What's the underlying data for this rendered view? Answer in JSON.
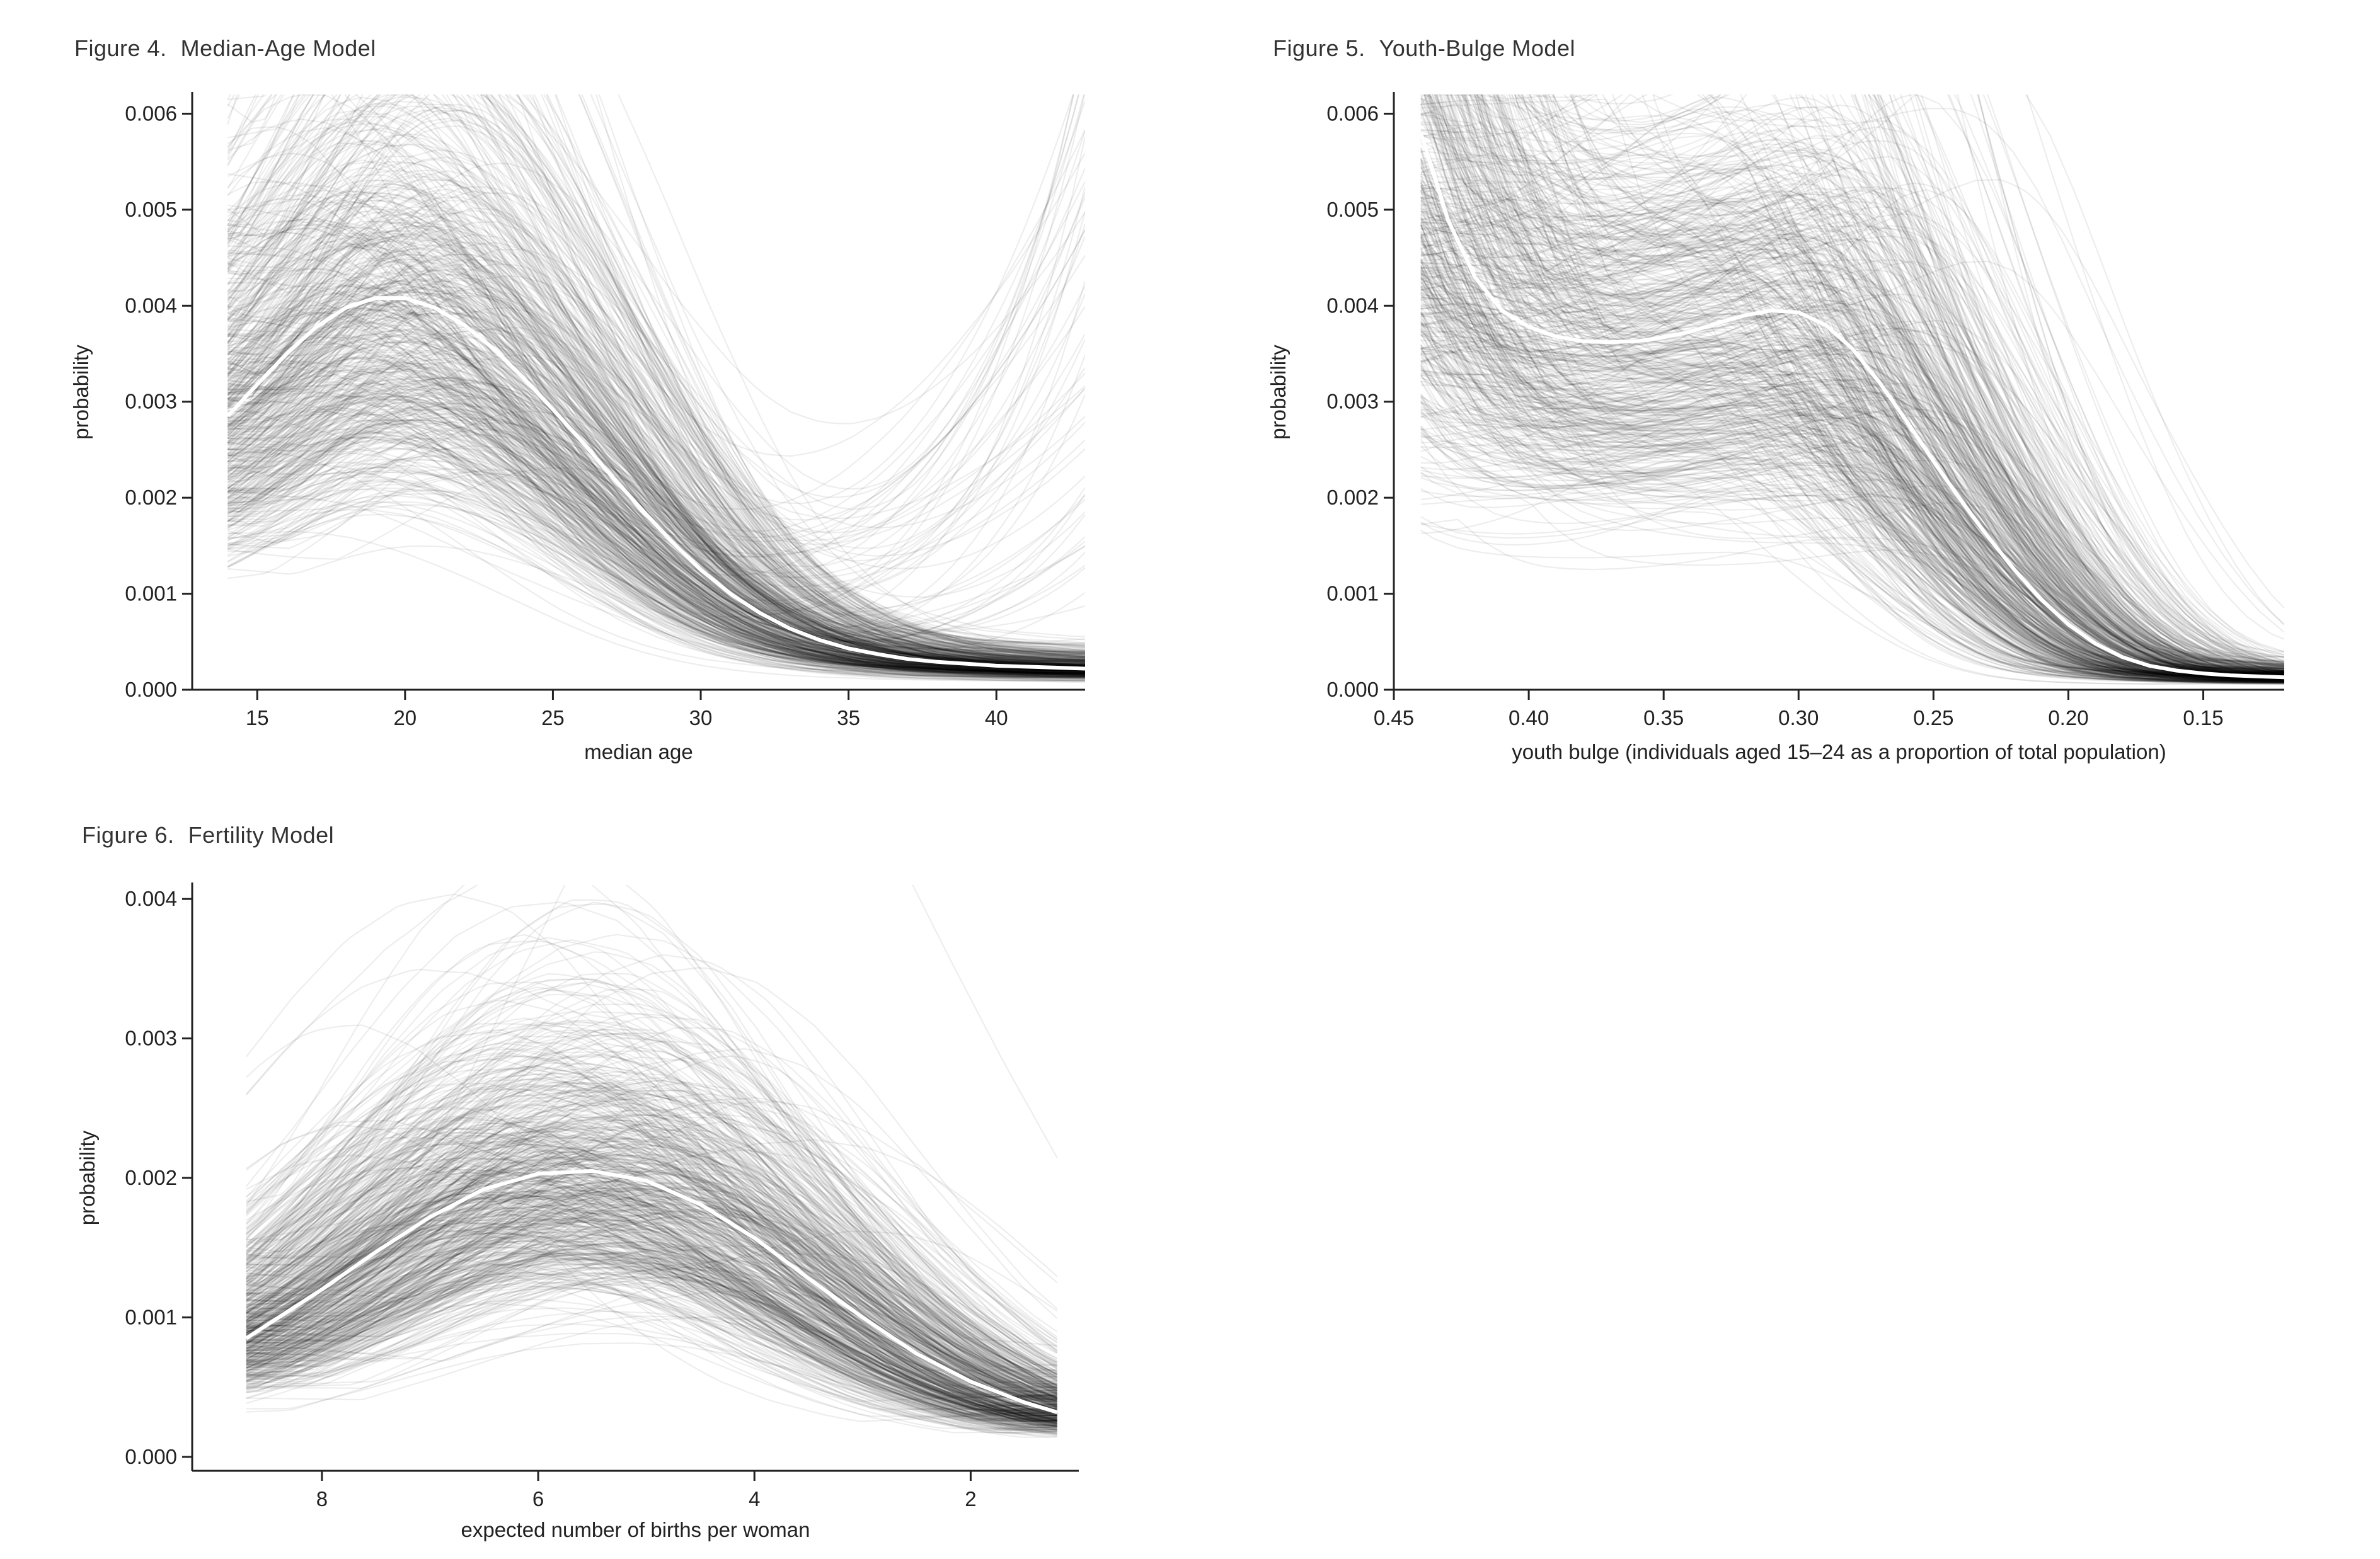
{
  "figures": [
    {
      "number": "Figure 4.",
      "name": "Median-Age Model"
    },
    {
      "number": "Figure 5.",
      "name": "Youth-Bulge Model"
    },
    {
      "number": "Figure 6.",
      "name": "Fertility Model"
    }
  ],
  "colors": {
    "ensemble": "#000000",
    "median_line": "#ffffff",
    "axis": "#222222",
    "background": "#ffffff"
  },
  "chart_data": [
    {
      "type": "line",
      "title": "Figure 4.  Median-Age Model",
      "xlabel": "median age",
      "ylabel": "probability",
      "xlim": [
        12.8,
        43
      ],
      "ylim": [
        0,
        0.0062
      ],
      "x_reversed": false,
      "x_ticks": [
        15,
        20,
        25,
        30,
        35,
        40
      ],
      "x_tick_labels": [
        "15",
        "20",
        "25",
        "30",
        "35",
        "40"
      ],
      "y_ticks": [
        0,
        0.001,
        0.002,
        0.003,
        0.004,
        0.005,
        0.006
      ],
      "y_tick_labels": [
        "0.000",
        "0.001",
        "0.002",
        "0.003",
        "0.004",
        "0.005",
        "0.006"
      ],
      "grid": false,
      "legend": "none",
      "x_data_range": [
        14,
        43
      ],
      "series": [
        {
          "role": "median",
          "x": [
            14,
            15,
            16,
            17,
            18,
            19,
            20,
            21,
            22,
            23,
            24,
            25,
            26,
            27,
            28,
            29,
            30,
            31,
            32,
            33,
            34,
            35,
            36,
            37,
            38,
            39,
            40,
            41,
            42,
            43
          ],
          "values": [
            0.00285,
            0.00318,
            0.0035,
            0.00378,
            0.00398,
            0.00408,
            0.00408,
            0.00398,
            0.0038,
            0.00355,
            0.00325,
            0.00292,
            0.00258,
            0.00222,
            0.00188,
            0.00155,
            0.00125,
            0.001,
            0.0008,
            0.00064,
            0.00052,
            0.00043,
            0.00037,
            0.00032,
            0.00029,
            0.00027,
            0.00025,
            0.00024,
            0.00023,
            0.00022
          ]
        }
      ],
      "ensemble": {
        "draws": 600,
        "alpha": 0.07
      }
    },
    {
      "type": "line",
      "title": "Figure 5.  Youth-Bulge Model",
      "xlabel": "youth bulge (individuals aged 15–24 as a proportion of total population)",
      "ylabel": "probability",
      "xlim": [
        0.45,
        0.12
      ],
      "ylim": [
        0,
        0.0062
      ],
      "x_reversed": true,
      "x_ticks": [
        0.45,
        0.4,
        0.35,
        0.3,
        0.25,
        0.2,
        0.15
      ],
      "x_tick_labels": [
        "0.45",
        "0.40",
        "0.35",
        "0.30",
        "0.25",
        "0.20",
        "0.15"
      ],
      "y_ticks": [
        0,
        0.001,
        0.002,
        0.003,
        0.004,
        0.005,
        0.006
      ],
      "y_tick_labels": [
        "0.000",
        "0.001",
        "0.002",
        "0.003",
        "0.004",
        "0.005",
        "0.006"
      ],
      "grid": false,
      "legend": "none",
      "x_data_range": [
        0.44,
        0.12
      ],
      "series": [
        {
          "role": "median",
          "x": [
            0.44,
            0.43,
            0.42,
            0.41,
            0.4,
            0.39,
            0.38,
            0.37,
            0.36,
            0.35,
            0.34,
            0.33,
            0.32,
            0.31,
            0.3,
            0.29,
            0.28,
            0.27,
            0.26,
            0.25,
            0.24,
            0.23,
            0.22,
            0.21,
            0.2,
            0.19,
            0.18,
            0.17,
            0.16,
            0.15,
            0.14,
            0.13,
            0.12
          ],
          "values": [
            0.0058,
            0.0049,
            0.0043,
            0.00395,
            0.00378,
            0.00368,
            0.00363,
            0.00362,
            0.00363,
            0.00367,
            0.00373,
            0.00382,
            0.0039,
            0.00395,
            0.00393,
            0.0038,
            0.00355,
            0.0032,
            0.0028,
            0.00238,
            0.00198,
            0.0016,
            0.00125,
            0.00094,
            0.00068,
            0.00048,
            0.00034,
            0.00025,
            0.0002,
            0.00017,
            0.00015,
            0.00014,
            0.00013
          ]
        }
      ],
      "ensemble": {
        "draws": 600,
        "alpha": 0.07
      }
    },
    {
      "type": "line",
      "title": "Figure 6.  Fertility Model",
      "xlabel": "expected number of births per woman",
      "ylabel": "probability",
      "xlim": [
        9.2,
        1.0
      ],
      "ylim": [
        -0.0001,
        0.0041
      ],
      "x_reversed": true,
      "x_ticks": [
        8,
        6,
        4,
        2
      ],
      "x_tick_labels": [
        "8",
        "6",
        "4",
        "2"
      ],
      "y_ticks": [
        0,
        0.001,
        0.002,
        0.003,
        0.004
      ],
      "y_tick_labels": [
        "0.000",
        "0.001",
        "0.002",
        "0.003",
        "0.004"
      ],
      "grid": false,
      "legend": "none",
      "x_data_range": [
        8.7,
        1.2
      ],
      "series": [
        {
          "role": "median",
          "x": [
            8.7,
            8.5,
            8.0,
            7.5,
            7.0,
            6.5,
            6.0,
            5.5,
            5.0,
            4.5,
            4.0,
            3.5,
            3.0,
            2.5,
            2.0,
            1.5,
            1.2
          ],
          "values": [
            0.00085,
            0.00095,
            0.0012,
            0.00147,
            0.00172,
            0.00192,
            0.00203,
            0.00205,
            0.00198,
            0.00181,
            0.00157,
            0.00128,
            0.001,
            0.00074,
            0.00054,
            0.00039,
            0.00032
          ]
        }
      ],
      "ensemble": {
        "draws": 600,
        "alpha": 0.07
      }
    }
  ]
}
